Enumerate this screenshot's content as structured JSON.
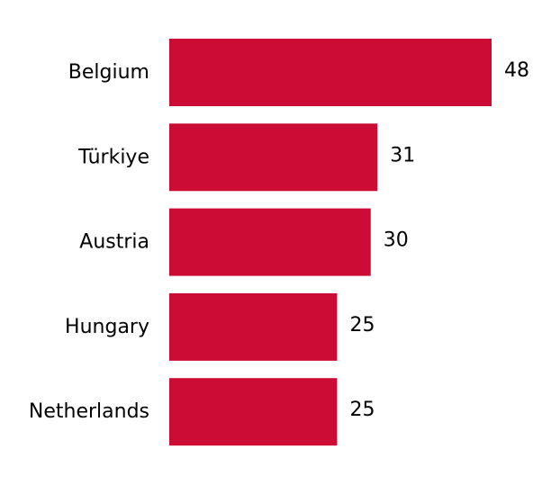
{
  "chart_data": {
    "type": "bar",
    "orientation": "horizontal",
    "categories": [
      "Belgium",
      "Türkiye",
      "Austria",
      "Hungary",
      "Netherlands"
    ],
    "values": [
      48,
      31,
      30,
      25,
      25
    ],
    "data_labels": [
      "48",
      "31",
      "30",
      "25",
      "25"
    ],
    "title": "",
    "xlabel": "",
    "ylabel": "",
    "xlim": [
      0,
      48
    ],
    "grid": false,
    "axes_visible": false,
    "bar_color": "#cc0c35"
  }
}
